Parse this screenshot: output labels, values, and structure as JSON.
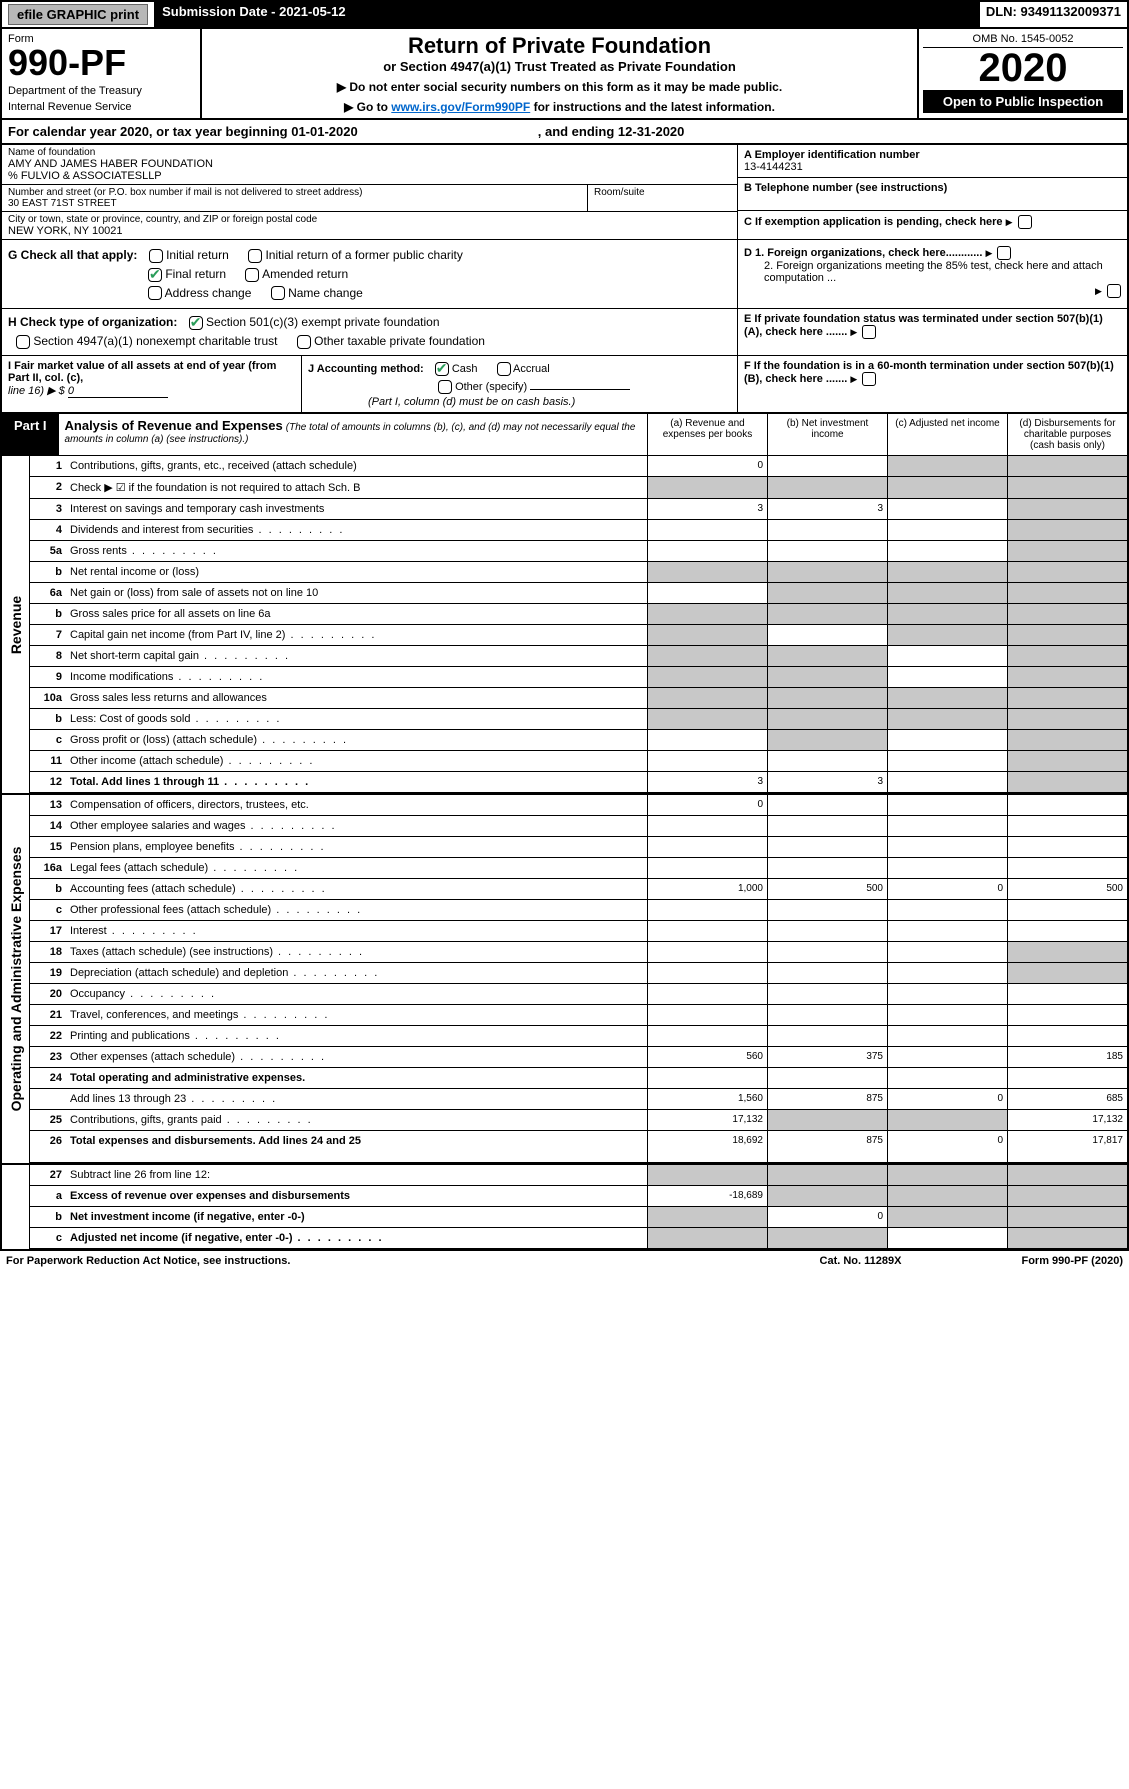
{
  "top_bar": {
    "efile": "efile GRAPHIC print",
    "sub_date": "Submission Date - 2021-05-12",
    "dln": "DLN: 93491132009371"
  },
  "header": {
    "form": "Form",
    "form_num": "990-PF",
    "dept": "Department of the Treasury",
    "irs": "Internal Revenue Service",
    "title": "Return of Private Foundation",
    "subtitle": "or Section 4947(a)(1) Trust Treated as Private Foundation",
    "note1": "▶ Do not enter social security numbers on this form as it may be made public.",
    "note2_pre": "▶ Go to ",
    "note2_link": "www.irs.gov/Form990PF",
    "note2_post": " for instructions and the latest information.",
    "omb": "OMB No. 1545-0052",
    "year": "2020",
    "open": "Open to Public Inspection"
  },
  "cal": {
    "text": "For calendar year 2020, or tax year beginning 01-01-2020",
    "ending": ", and ending 12-31-2020"
  },
  "name": {
    "label": "Name of foundation",
    "value": "AMY AND JAMES HABER FOUNDATION",
    "co": "% FULVIO & ASSOCIATESLLP"
  },
  "address": {
    "label": "Number and street (or P.O. box number if mail is not delivered to street address)",
    "value": "30 EAST 71ST STREET",
    "room_label": "Room/suite"
  },
  "city": {
    "label": "City or town, state or province, country, and ZIP or foreign postal code",
    "value": "NEW YORK, NY  10021"
  },
  "ein": {
    "label": "A Employer identification number",
    "value": "13-4144231"
  },
  "phone": {
    "label": "B Telephone number (see instructions)"
  },
  "exempt": {
    "label": "C If exemption application is pending, check here"
  },
  "g": {
    "label": "G Check all that apply:",
    "opts": {
      "initial": "Initial return",
      "initial_pub": "Initial return of a former public charity",
      "final": "Final return",
      "amended": "Amended return",
      "addr": "Address change",
      "name": "Name change"
    }
  },
  "d": {
    "d1": "D 1. Foreign organizations, check here............",
    "d2": "2. Foreign organizations meeting the 85% test, check here and attach computation ...",
    "e": "E  If private foundation status was terminated under section 507(b)(1)(A), check here .......",
    "f": "F  If the foundation is in a 60-month termination under section 507(b)(1)(B), check here ......."
  },
  "h": {
    "label": "H Check type of organization:",
    "opt1": "Section 501(c)(3) exempt private foundation",
    "opt2": "Section 4947(a)(1) nonexempt charitable trust",
    "opt3": "Other taxable private foundation"
  },
  "i": {
    "label": "I Fair market value of all assets at end of year (from Part II, col. (c),",
    "line16": "line 16) ▶ $",
    "value": "0"
  },
  "j": {
    "label": "J Accounting method:",
    "cash": "Cash",
    "accrual": "Accrual",
    "other": "Other (specify)",
    "note": "(Part I, column (d) must be on cash basis.)"
  },
  "part1": {
    "label": "Part I",
    "title": "Analysis of Revenue and Expenses",
    "note": "(The total of amounts in columns (b), (c), and (d) may not necessarily equal the amounts in column (a) (see instructions).)",
    "col_a": "(a)    Revenue and expenses per books",
    "col_b": "(b)  Net investment income",
    "col_c": "(c)  Adjusted net income",
    "col_d": "(d)  Disbursements for charitable purposes (cash basis only)"
  },
  "vert": {
    "revenue": "Revenue",
    "expenses": "Operating and Administrative Expenses"
  },
  "rows": [
    {
      "n": "1",
      "d": "Contributions, gifts, grants, etc., received (attach schedule)",
      "a": "0",
      "g": [
        "",
        "c",
        "d"
      ]
    },
    {
      "n": "2",
      "d": "Check ▶ ☑ if the foundation is not required to attach Sch. B",
      "nodots": true,
      "g": [
        "a",
        "b",
        "c",
        "d"
      ]
    },
    {
      "n": "3",
      "d": "Interest on savings and temporary cash investments",
      "a": "3",
      "b": "3",
      "g": [
        "d"
      ]
    },
    {
      "n": "4",
      "d": "Dividends and interest from securities",
      "dots": true,
      "g": [
        "d"
      ]
    },
    {
      "n": "5a",
      "d": "Gross rents",
      "dots": true,
      "g": [
        "d"
      ]
    },
    {
      "n": "b",
      "d": "Net rental income or (loss)",
      "g": [
        "a",
        "b",
        "c",
        "d"
      ]
    },
    {
      "n": "6a",
      "d": "Net gain or (loss) from sale of assets not on line 10",
      "g": [
        "b",
        "c",
        "d"
      ]
    },
    {
      "n": "b",
      "d": "Gross sales price for all assets on line 6a",
      "g": [
        "a",
        "b",
        "c",
        "d"
      ]
    },
    {
      "n": "7",
      "d": "Capital gain net income (from Part IV, line 2)",
      "dots": true,
      "g": [
        "a",
        "c",
        "d"
      ]
    },
    {
      "n": "8",
      "d": "Net short-term capital gain",
      "dots": true,
      "g": [
        "a",
        "b",
        "d"
      ]
    },
    {
      "n": "9",
      "d": "Income modifications",
      "dots": true,
      "g": [
        "a",
        "b",
        "d"
      ]
    },
    {
      "n": "10a",
      "d": "Gross sales less returns and allowances",
      "g": [
        "a",
        "b",
        "c",
        "d"
      ]
    },
    {
      "n": "b",
      "d": "Less: Cost of goods sold",
      "dots": true,
      "g": [
        "a",
        "b",
        "c",
        "d"
      ]
    },
    {
      "n": "c",
      "d": "Gross profit or (loss) (attach schedule)",
      "dots": true,
      "g": [
        "b",
        "d"
      ]
    },
    {
      "n": "11",
      "d": "Other income (attach schedule)",
      "dots": true,
      "g": [
        "d"
      ]
    },
    {
      "n": "12",
      "d": "Total. Add lines 1 through 11",
      "bold": true,
      "dots": true,
      "a": "3",
      "b": "3",
      "g": [
        "d"
      ]
    }
  ],
  "exp_rows": [
    {
      "n": "13",
      "d": "Compensation of officers, directors, trustees, etc.",
      "a": "0"
    },
    {
      "n": "14",
      "d": "Other employee salaries and wages",
      "dots": true
    },
    {
      "n": "15",
      "d": "Pension plans, employee benefits",
      "dots": true
    },
    {
      "n": "16a",
      "d": "Legal fees (attach schedule)",
      "dots": true
    },
    {
      "n": "b",
      "d": "Accounting fees (attach schedule)",
      "dots": true,
      "a": "1,000",
      "b": "500",
      "c": "0",
      "dd": "500"
    },
    {
      "n": "c",
      "d": "Other professional fees (attach schedule)",
      "dots": true
    },
    {
      "n": "17",
      "d": "Interest",
      "dots": true
    },
    {
      "n": "18",
      "d": "Taxes (attach schedule) (see instructions)",
      "dots": true,
      "g": [
        "d"
      ]
    },
    {
      "n": "19",
      "d": "Depreciation (attach schedule) and depletion",
      "dots": true,
      "g": [
        "d"
      ]
    },
    {
      "n": "20",
      "d": "Occupancy",
      "dots": true
    },
    {
      "n": "21",
      "d": "Travel, conferences, and meetings",
      "dots": true
    },
    {
      "n": "22",
      "d": "Printing and publications",
      "dots": true
    },
    {
      "n": "23",
      "d": "Other expenses (attach schedule)",
      "dots": true,
      "a": "560",
      "b": "375",
      "dd": "185"
    },
    {
      "n": "24",
      "d": "Total operating and administrative expenses.",
      "bold": true
    },
    {
      "n": "",
      "d": "Add lines 13 through 23",
      "dots": true,
      "a": "1,560",
      "b": "875",
      "c": "0",
      "dd": "685"
    },
    {
      "n": "25",
      "d": "Contributions, gifts, grants paid",
      "dots": true,
      "a": "17,132",
      "g": [
        "b",
        "c"
      ],
      "dd": "17,132"
    },
    {
      "n": "26",
      "d": "Total expenses and disbursements. Add lines 24 and 25",
      "bold": true,
      "a_below": "18,692",
      "b": "875",
      "c": "0",
      "dd": "17,817",
      "tall": true
    }
  ],
  "sub_rows": [
    {
      "n": "27",
      "d": "Subtract line 26 from line 12:",
      "g": [
        "a",
        "b",
        "c",
        "d"
      ]
    },
    {
      "n": "a",
      "d": "Excess of revenue over expenses and disbursements",
      "bold": true,
      "a": "-18,689",
      "g": [
        "b",
        "c",
        "d"
      ]
    },
    {
      "n": "b",
      "d": "Net investment income (if negative, enter -0-)",
      "bold": true,
      "b": "0",
      "g": [
        "a",
        "c",
        "d"
      ]
    },
    {
      "n": "c",
      "d": "Adjusted net income (if negative, enter -0-)",
      "bold": true,
      "dots": true,
      "g": [
        "a",
        "b",
        "d"
      ]
    }
  ],
  "footer": {
    "left": "For Paperwork Reduction Act Notice, see instructions.",
    "mid": "Cat. No. 11289X",
    "right": "Form 990-PF (2020)"
  }
}
